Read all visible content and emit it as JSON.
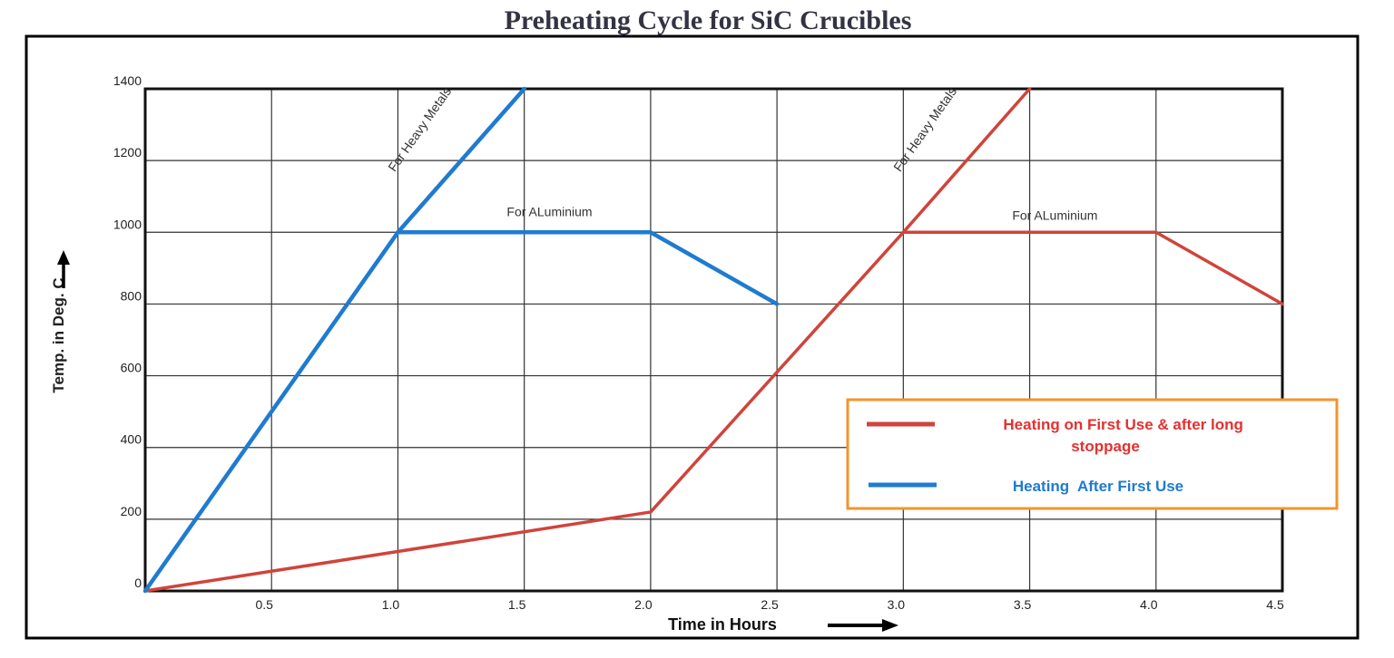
{
  "chart_data": {
    "type": "line",
    "title": "Preheating Cycle for SiC Crucibles",
    "xlabel": "Time in Hours",
    "ylabel": "Temp. in Deg. C",
    "xlim": [
      0,
      4.5
    ],
    "ylim": [
      0,
      1400
    ],
    "x_ticks": [
      "0.5",
      "1.0",
      "1.5",
      "2.0",
      "2.5",
      "3.0",
      "3.5",
      "4.0",
      "4.5"
    ],
    "y_ticks": [
      "0",
      "200",
      "400",
      "600",
      "800",
      "1000",
      "1200",
      "1400"
    ],
    "grid": true,
    "legend_position": "bottom-right",
    "series": [
      {
        "name": "Heating on First Use & after long stoppage",
        "color": "#d0443b",
        "segments": [
          [
            {
              "x": 0,
              "y": 0
            },
            {
              "x": 2.0,
              "y": 220
            },
            {
              "x": 3.0,
              "y": 1000
            },
            {
              "x": 3.5,
              "y": 1400
            }
          ],
          [
            {
              "x": 3.0,
              "y": 1000
            },
            {
              "x": 4.0,
              "y": 1000
            },
            {
              "x": 4.5,
              "y": 800
            }
          ]
        ]
      },
      {
        "name": "Heating  After First Use",
        "color": "#1f7bd0",
        "segments": [
          [
            {
              "x": 0,
              "y": 0
            },
            {
              "x": 1.0,
              "y": 1000
            },
            {
              "x": 1.5,
              "y": 1400
            }
          ],
          [
            {
              "x": 1.0,
              "y": 1000
            },
            {
              "x": 2.0,
              "y": 1000
            },
            {
              "x": 2.5,
              "y": 800
            }
          ]
        ]
      }
    ],
    "annotations": [
      {
        "text": "For Heavy Metals",
        "x": 1.1,
        "y": 1280,
        "angle": -55
      },
      {
        "text": "For ALuminium",
        "x": 1.6,
        "y": 1045,
        "angle": 0
      },
      {
        "text": "For Heavy Metals",
        "x": 3.1,
        "y": 1280,
        "angle": -55
      },
      {
        "text": "For ALuminium",
        "x": 3.6,
        "y": 1035,
        "angle": 0
      }
    ],
    "arrow_colors": {
      "axis_arrow": "#000000"
    },
    "frame_color": "#000000",
    "legend_border_color": "#f0952d"
  }
}
